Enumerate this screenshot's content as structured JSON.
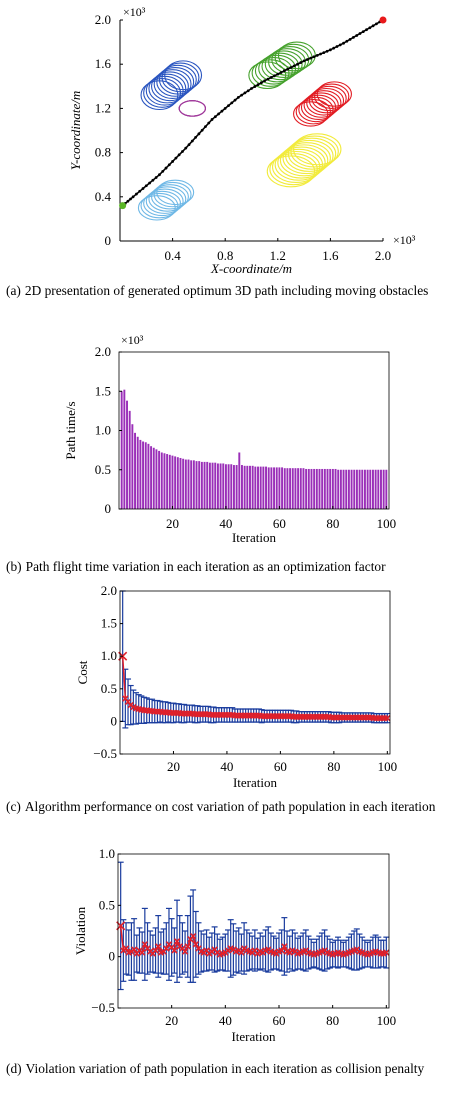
{
  "chart_data": [
    {
      "type": "scatter",
      "caption_tag": "(a)",
      "caption": "2D presentation of generated optimum 3D path including moving obstacles",
      "xlabel": "X-coordinate/m",
      "ylabel": "Y-coordinate/m",
      "x_multiplier": "×10³",
      "y_multiplier": "×10³",
      "xlim": [
        0,
        2.0
      ],
      "ylim": [
        0,
        2.0
      ],
      "xticks": [
        "0.4",
        "0.8",
        "1.2",
        "1.6",
        "2.0"
      ],
      "yticks": [
        "0",
        "0.4",
        "0.8",
        "1.2",
        "1.6",
        "2.0"
      ],
      "start_point": {
        "x": 0.02,
        "y": 0.32,
        "color": "#5ab526"
      },
      "end_point": {
        "x": 2.0,
        "y": 2.0,
        "color": "#e8191b"
      },
      "path": [
        [
          0.02,
          0.32
        ],
        [
          0.1,
          0.4
        ],
        [
          0.2,
          0.5
        ],
        [
          0.3,
          0.6
        ],
        [
          0.4,
          0.72
        ],
        [
          0.5,
          0.84
        ],
        [
          0.6,
          0.97
        ],
        [
          0.7,
          1.1
        ],
        [
          0.8,
          1.2
        ],
        [
          0.9,
          1.3
        ],
        [
          1.0,
          1.38
        ],
        [
          1.1,
          1.45
        ],
        [
          1.2,
          1.51
        ],
        [
          1.3,
          1.57
        ],
        [
          1.4,
          1.63
        ],
        [
          1.5,
          1.68
        ],
        [
          1.6,
          1.73
        ],
        [
          1.7,
          1.79
        ],
        [
          1.8,
          1.86
        ],
        [
          1.9,
          1.93
        ],
        [
          2.0,
          2.0
        ]
      ],
      "obstacles": [
        {
          "color": "#2a55c0",
          "cx0": 0.3,
          "cy0": 1.32,
          "dx": 0.02,
          "dy": 0.02,
          "rx": 0.14,
          "ry": 0.13,
          "rings": 10
        },
        {
          "color": "#a0399b",
          "cx0": 0.55,
          "cy0": 1.2,
          "dx": 0.0,
          "dy": 0.0,
          "rx": 0.1,
          "ry": 0.07,
          "rings": 3
        },
        {
          "color": "#45a12c",
          "cx0": 1.12,
          "cy0": 1.5,
          "dx": 0.025,
          "dy": 0.02,
          "rx": 0.14,
          "ry": 0.12,
          "rings": 10
        },
        {
          "color": "#e21c23",
          "cx0": 1.45,
          "cy0": 1.15,
          "dx": 0.02,
          "dy": 0.02,
          "rx": 0.13,
          "ry": 0.11,
          "rings": 10
        },
        {
          "color": "#f2eb3c",
          "cx0": 1.3,
          "cy0": 0.63,
          "dx": 0.02,
          "dy": 0.02,
          "rx": 0.18,
          "ry": 0.14,
          "rings": 11
        },
        {
          "color": "#6fb8e6",
          "cx0": 0.28,
          "cy0": 0.3,
          "dx": 0.02,
          "dy": 0.02,
          "rx": 0.14,
          "ry": 0.11,
          "rings": 8
        }
      ]
    },
    {
      "type": "bar",
      "caption_tag": "(b)",
      "caption": "Path flight time variation in each iteration as an optimization factor",
      "xlabel": "Iteration",
      "ylabel": "Path time/s",
      "y_multiplier": "×10³",
      "xlim": [
        0,
        101
      ],
      "ylim": [
        0,
        2.0
      ],
      "xticks": [
        "20",
        "40",
        "60",
        "80",
        "100"
      ],
      "yticks": [
        "0",
        "0.5",
        "1.0",
        "1.5",
        "2.0"
      ],
      "bar_color": "#9a2fb8",
      "values": [
        1.5,
        1.52,
        1.38,
        1.25,
        1.08,
        0.97,
        0.92,
        0.88,
        0.86,
        0.85,
        0.83,
        0.8,
        0.78,
        0.76,
        0.74,
        0.72,
        0.71,
        0.7,
        0.69,
        0.68,
        0.67,
        0.66,
        0.65,
        0.64,
        0.63,
        0.63,
        0.62,
        0.62,
        0.61,
        0.61,
        0.6,
        0.6,
        0.6,
        0.59,
        0.59,
        0.59,
        0.58,
        0.58,
        0.58,
        0.57,
        0.57,
        0.57,
        0.56,
        0.56,
        0.72,
        0.56,
        0.55,
        0.55,
        0.55,
        0.55,
        0.54,
        0.54,
        0.54,
        0.54,
        0.54,
        0.53,
        0.53,
        0.53,
        0.53,
        0.53,
        0.53,
        0.52,
        0.52,
        0.52,
        0.52,
        0.52,
        0.52,
        0.52,
        0.52,
        0.51,
        0.51,
        0.51,
        0.51,
        0.51,
        0.51,
        0.51,
        0.51,
        0.51,
        0.51,
        0.51,
        0.51,
        0.5,
        0.5,
        0.5,
        0.5,
        0.5,
        0.5,
        0.5,
        0.5,
        0.5,
        0.5,
        0.5,
        0.5,
        0.5,
        0.5,
        0.5,
        0.5,
        0.5,
        0.5,
        0.5
      ]
    },
    {
      "type": "line",
      "caption_tag": "(c)",
      "caption": "Algorithm performance on cost variation of path population in each iteration",
      "xlabel": "Iteration",
      "ylabel": "Cost",
      "xlim": [
        0,
        101
      ],
      "ylim": [
        -0.5,
        2.0
      ],
      "xticks": [
        "20",
        "40",
        "60",
        "80",
        "100"
      ],
      "yticks": [
        "−0.5",
        "0",
        "0.5",
        "1.0",
        "1.5",
        "2.0"
      ],
      "marker_color": "#e0202a",
      "error_color": "#1a3c9e",
      "mean": [
        1.0,
        0.35,
        0.3,
        0.25,
        0.22,
        0.2,
        0.19,
        0.18,
        0.17,
        0.17,
        0.16,
        0.16,
        0.15,
        0.15,
        0.15,
        0.14,
        0.14,
        0.14,
        0.13,
        0.13,
        0.13,
        0.13,
        0.12,
        0.12,
        0.12,
        0.12,
        0.12,
        0.11,
        0.11,
        0.11,
        0.11,
        0.11,
        0.11,
        0.1,
        0.1,
        0.1,
        0.1,
        0.1,
        0.1,
        0.1,
        0.1,
        0.1,
        0.09,
        0.09,
        0.09,
        0.09,
        0.09,
        0.09,
        0.09,
        0.09,
        0.09,
        0.09,
        0.08,
        0.08,
        0.08,
        0.08,
        0.08,
        0.08,
        0.08,
        0.08,
        0.08,
        0.08,
        0.08,
        0.08,
        0.07,
        0.07,
        0.07,
        0.07,
        0.07,
        0.07,
        0.07,
        0.07,
        0.07,
        0.07,
        0.07,
        0.07,
        0.07,
        0.07,
        0.06,
        0.06,
        0.06,
        0.06,
        0.06,
        0.06,
        0.06,
        0.06,
        0.06,
        0.06,
        0.06,
        0.06,
        0.06,
        0.06,
        0.06,
        0.06,
        0.05,
        0.05,
        0.05,
        0.05,
        0.05,
        0.05
      ],
      "error": [
        1.0,
        0.45,
        0.35,
        0.3,
        0.26,
        0.24,
        0.22,
        0.21,
        0.2,
        0.19,
        0.18,
        0.18,
        0.17,
        0.17,
        0.16,
        0.16,
        0.16,
        0.15,
        0.15,
        0.15,
        0.14,
        0.14,
        0.14,
        0.14,
        0.13,
        0.13,
        0.13,
        0.13,
        0.13,
        0.12,
        0.12,
        0.12,
        0.12,
        0.12,
        0.12,
        0.11,
        0.11,
        0.11,
        0.11,
        0.11,
        0.11,
        0.11,
        0.1,
        0.1,
        0.1,
        0.1,
        0.1,
        0.1,
        0.1,
        0.1,
        0.1,
        0.1,
        0.1,
        0.09,
        0.09,
        0.09,
        0.09,
        0.09,
        0.09,
        0.09,
        0.09,
        0.09,
        0.09,
        0.09,
        0.09,
        0.09,
        0.08,
        0.08,
        0.08,
        0.08,
        0.08,
        0.08,
        0.08,
        0.08,
        0.08,
        0.08,
        0.08,
        0.08,
        0.08,
        0.08,
        0.08,
        0.08,
        0.07,
        0.07,
        0.07,
        0.07,
        0.07,
        0.07,
        0.07,
        0.07,
        0.07,
        0.07,
        0.07,
        0.07,
        0.07,
        0.07,
        0.07,
        0.07,
        0.07,
        0.07
      ]
    },
    {
      "type": "line",
      "caption_tag": "(d)",
      "caption": "Violation variation of path population in each iteration as collision penalty",
      "xlabel": "Iteration",
      "ylabel": "Violation",
      "xlim": [
        0,
        101
      ],
      "ylim": [
        -0.5,
        1.0
      ],
      "xticks": [
        "20",
        "40",
        "60",
        "80",
        "100"
      ],
      "yticks": [
        "−0.5",
        "0",
        "0.5",
        "1.0"
      ],
      "marker_color": "#e0202a",
      "error_color": "#1a3c9e",
      "mean": [
        0.3,
        0.06,
        0.08,
        0.04,
        0.05,
        0.07,
        0.03,
        0.06,
        0.04,
        0.12,
        0.08,
        0.05,
        0.03,
        0.06,
        0.1,
        0.04,
        0.05,
        0.08,
        0.12,
        0.09,
        0.06,
        0.15,
        0.1,
        0.08,
        0.05,
        0.1,
        0.17,
        0.2,
        0.12,
        0.08,
        0.05,
        0.04,
        0.06,
        0.03,
        0.05,
        0.07,
        0.04,
        0.02,
        0.03,
        0.04,
        0.06,
        0.08,
        0.07,
        0.05,
        0.06,
        0.04,
        0.08,
        0.06,
        0.05,
        0.04,
        0.06,
        0.03,
        0.05,
        0.04,
        0.06,
        0.07,
        0.05,
        0.04,
        0.03,
        0.05,
        0.06,
        0.1,
        0.05,
        0.04,
        0.06,
        0.05,
        0.03,
        0.04,
        0.05,
        0.06,
        0.04,
        0.03,
        0.02,
        0.03,
        0.04,
        0.05,
        0.06,
        0.04,
        0.03,
        0.02,
        0.03,
        0.04,
        0.03,
        0.02,
        0.03,
        0.04,
        0.05,
        0.06,
        0.07,
        0.05,
        0.04,
        0.03,
        0.02,
        0.03,
        0.04,
        0.05,
        0.04,
        0.03,
        0.03,
        0.04
      ],
      "error": [
        0.62,
        0.3,
        0.25,
        0.22,
        0.28,
        0.3,
        0.18,
        0.22,
        0.2,
        0.35,
        0.25,
        0.2,
        0.18,
        0.22,
        0.3,
        0.2,
        0.22,
        0.25,
        0.35,
        0.28,
        0.22,
        0.4,
        0.3,
        0.25,
        0.2,
        0.3,
        0.42,
        0.45,
        0.32,
        0.25,
        0.2,
        0.18,
        0.2,
        0.16,
        0.18,
        0.22,
        0.18,
        0.15,
        0.16,
        0.18,
        0.2,
        0.28,
        0.25,
        0.2,
        0.22,
        0.18,
        0.25,
        0.2,
        0.18,
        0.16,
        0.2,
        0.15,
        0.18,
        0.16,
        0.2,
        0.22,
        0.18,
        0.16,
        0.15,
        0.18,
        0.2,
        0.28,
        0.2,
        0.16,
        0.2,
        0.18,
        0.15,
        0.16,
        0.18,
        0.2,
        0.16,
        0.14,
        0.12,
        0.14,
        0.16,
        0.18,
        0.2,
        0.16,
        0.14,
        0.12,
        0.13,
        0.15,
        0.13,
        0.12,
        0.13,
        0.15,
        0.17,
        0.19,
        0.2,
        0.17,
        0.15,
        0.13,
        0.12,
        0.13,
        0.15,
        0.16,
        0.15,
        0.13,
        0.13,
        0.15
      ]
    }
  ]
}
